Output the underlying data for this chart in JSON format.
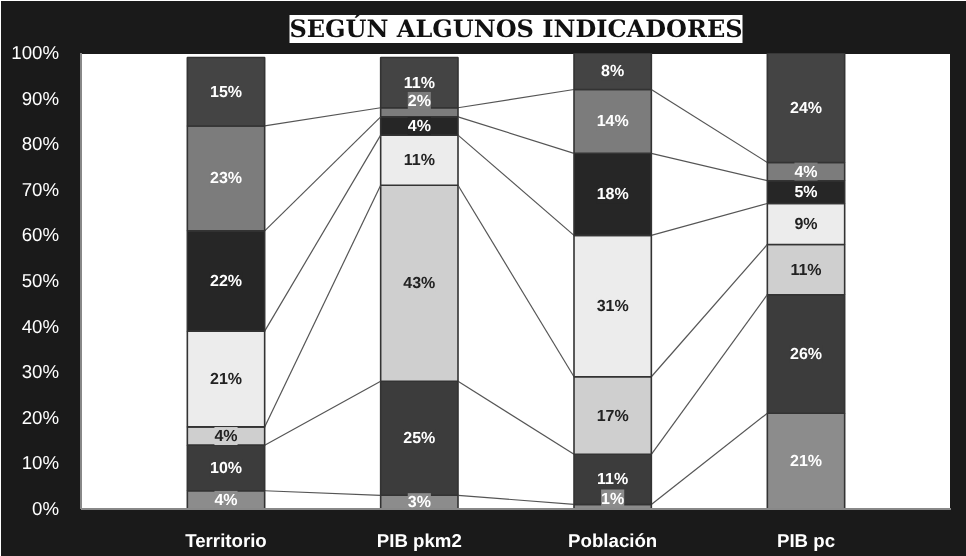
{
  "chart_data": {
    "type": "bar",
    "stacked": true,
    "title": "SEGÚN ALGUNOS INDICADORES",
    "categories": [
      "Territorio",
      "PIB pkm2",
      "Población",
      "PIB pc"
    ],
    "series": [
      {
        "color": "#8c8c8c",
        "values": [
          4,
          3,
          1,
          21
        ],
        "value_labels": [
          "4%",
          "3%",
          "1%",
          "21%"
        ]
      },
      {
        "color": "#3c3c3c",
        "values": [
          10,
          25,
          11,
          26
        ],
        "value_labels": [
          "10%",
          "25%",
          "11%",
          "26%"
        ]
      },
      {
        "color": "#cfcfcf",
        "values": [
          4,
          43,
          17,
          11
        ],
        "value_labels": [
          "4%",
          "43%",
          "17%",
          "11%"
        ]
      },
      {
        "color": "#ececec",
        "values": [
          21,
          11,
          31,
          9
        ],
        "value_labels": [
          "21%",
          "11%",
          "31%",
          "9%"
        ]
      },
      {
        "color": "#262626",
        "values": [
          22,
          4,
          18,
          5
        ],
        "value_labels": [
          "22%",
          "4%",
          "18%",
          "5%"
        ]
      },
      {
        "color": "#7c7c7c",
        "values": [
          23,
          2,
          14,
          4
        ],
        "value_labels": [
          "23%",
          "2%",
          "14%",
          "4%"
        ]
      },
      {
        "color": "#444444",
        "values": [
          15,
          11,
          8,
          24
        ],
        "value_labels": [
          "15%",
          "11%",
          "8%",
          "24%"
        ]
      }
    ],
    "ylim": [
      0,
      100
    ],
    "yticks": [
      {
        "value": 0,
        "label": "0%"
      },
      {
        "value": 10,
        "label": "10%"
      },
      {
        "value": 20,
        "label": "20%"
      },
      {
        "value": 30,
        "label": "30%"
      },
      {
        "value": 40,
        "label": "40%"
      },
      {
        "value": 50,
        "label": "50%"
      },
      {
        "value": 60,
        "label": "60%"
      },
      {
        "value": 70,
        "label": "70%"
      },
      {
        "value": 80,
        "label": "80%"
      },
      {
        "value": 90,
        "label": "90%"
      },
      {
        "value": 100,
        "label": "100%"
      }
    ],
    "grid": false
  }
}
